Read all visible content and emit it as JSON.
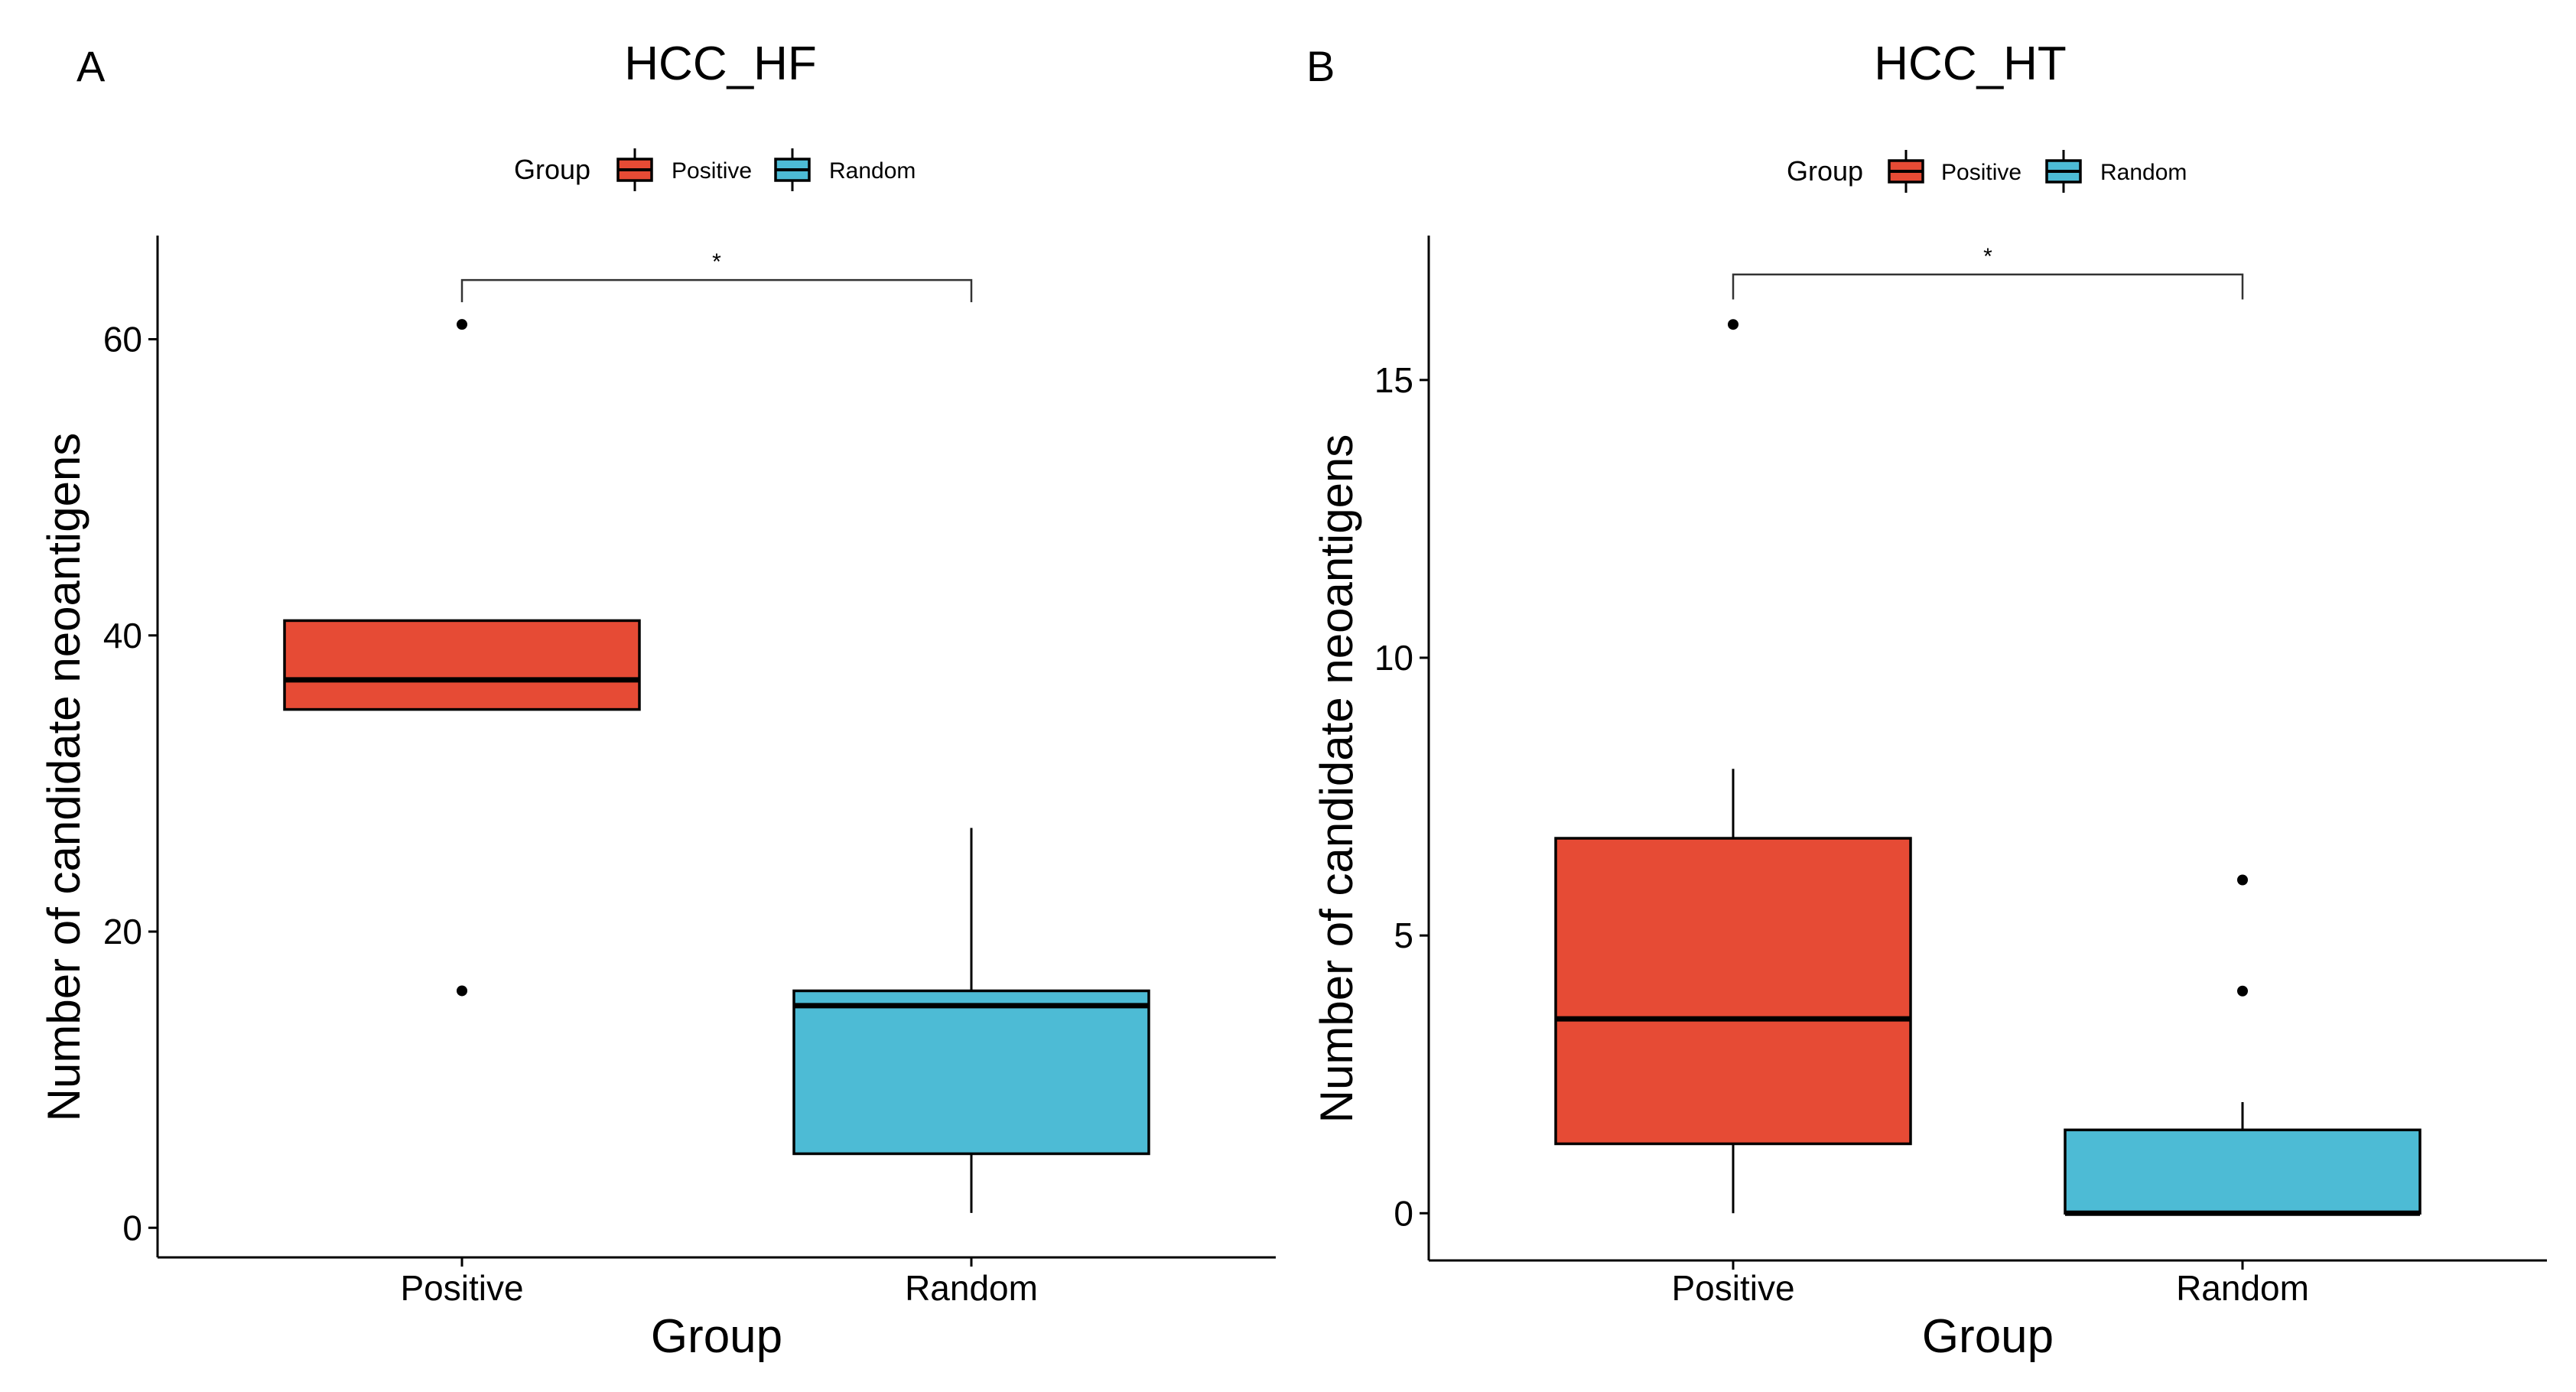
{
  "figure": {
    "panels": [
      {
        "label": "A"
      },
      {
        "label": "B"
      }
    ]
  },
  "legend": {
    "title": "Group",
    "items": [
      "Positive",
      "Random"
    ]
  },
  "colors": {
    "Positive": "#e64b35",
    "Random": "#4dbbd5"
  },
  "chart_data": [
    {
      "type": "box",
      "panel": "A",
      "title": "HCC_HF",
      "xlabel": "Group",
      "ylabel": "Number of candidate neoantigens",
      "categories": [
        "Positive",
        "Random"
      ],
      "ylim": [
        -2,
        67
      ],
      "yticks": [
        0,
        20,
        40,
        60
      ],
      "legend_position": "top",
      "boxes": [
        {
          "group": "Positive",
          "lower_whisker": 35,
          "q1": 35,
          "median": 37,
          "q3": 41,
          "upper_whisker": 41,
          "outliers": [
            61,
            16
          ]
        },
        {
          "group": "Random",
          "lower_whisker": 1,
          "q1": 5,
          "median": 15,
          "q3": 16,
          "upper_whisker": 27,
          "outliers": []
        }
      ],
      "significance": {
        "label": "*",
        "y": 64,
        "tick_end": 62.5
      }
    },
    {
      "type": "box",
      "panel": "B",
      "title": "HCC_HT",
      "xlabel": "Group",
      "ylabel": "Number of candidate neoantigens",
      "categories": [
        "Positive",
        "Random"
      ],
      "ylim": [
        -0.85,
        17.6
      ],
      "yticks": [
        0,
        5,
        10,
        15
      ],
      "legend_position": "top",
      "boxes": [
        {
          "group": "Positive",
          "lower_whisker": 0,
          "q1": 1.25,
          "median": 3.5,
          "q3": 6.75,
          "upper_whisker": 8,
          "outliers": [
            16
          ]
        },
        {
          "group": "Random",
          "lower_whisker": 0,
          "q1": 0,
          "median": 0,
          "q3": 1.5,
          "upper_whisker": 2,
          "outliers": [
            6,
            4
          ]
        }
      ],
      "significance": {
        "label": "*",
        "y": 16.9,
        "tick_end": 16.45
      }
    }
  ]
}
